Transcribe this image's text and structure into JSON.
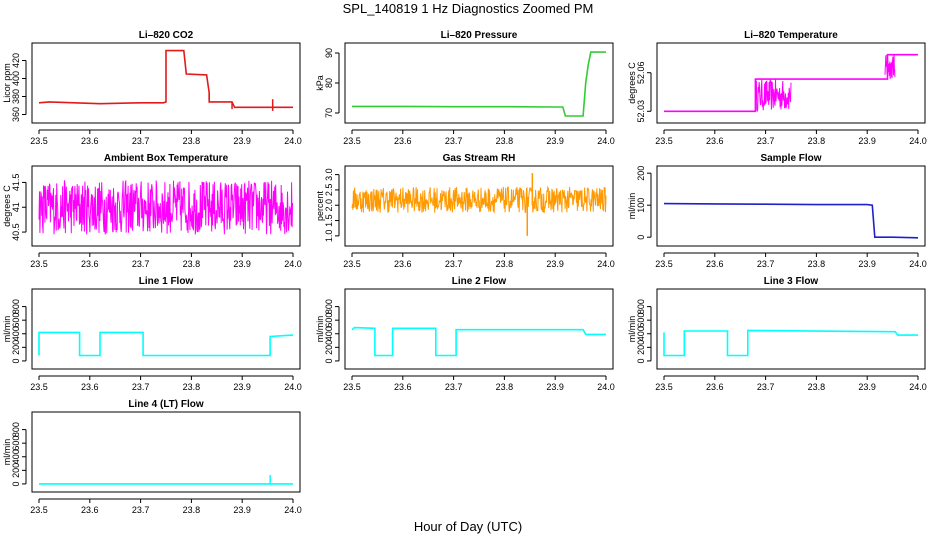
{
  "figure": {
    "title": "SPL_140819  1 Hz Diagnostics Zoomed PM",
    "xlabel": "Hour of Day (UTC)"
  },
  "chart_data": [
    {
      "id": "co2",
      "type": "line",
      "title": "Li–820 CO2",
      "ylabel": "Licor ppm",
      "color": "#e31a1c",
      "xlim": [
        23.5,
        24.0
      ],
      "ylim": [
        355,
        435
      ],
      "xticks": [
        23.5,
        23.6,
        23.7,
        23.8,
        23.9,
        24.0
      ],
      "yticks": [
        360,
        380,
        400,
        420
      ],
      "series": [
        {
          "x": [
            23.5,
            23.52,
            23.62,
            23.7,
            23.745,
            23.75,
            23.75,
            23.785,
            23.79,
            23.79,
            23.83,
            23.835,
            23.835,
            23.88,
            23.885,
            24.0
          ],
          "y": [
            373,
            374,
            372,
            373,
            373,
            374,
            431,
            431,
            405,
            405,
            404,
            384,
            374,
            374,
            368,
            368
          ]
        }
      ],
      "events": [
        {
          "x": 23.96,
          "y0": 364,
          "y1": 377
        },
        {
          "x": 23.835,
          "y0": 376,
          "y1": 384
        },
        {
          "x": 23.88,
          "y0": 366,
          "y1": 374
        }
      ]
    },
    {
      "id": "pres",
      "type": "line",
      "title": "Li–820 Pressure",
      "ylabel": "kPa",
      "color": "#33cc33",
      "xlim": [
        23.5,
        24.0
      ],
      "ylim": [
        68,
        92
      ],
      "xticks": [
        23.5,
        23.6,
        23.7,
        23.8,
        23.9,
        24.0
      ],
      "yticks": [
        70,
        80,
        90
      ],
      "series": [
        {
          "x": [
            23.5,
            23.6,
            23.7,
            23.8,
            23.9,
            23.915,
            23.92,
            23.955,
            23.96,
            23.965,
            23.97,
            24.0
          ],
          "y": [
            72.2,
            72.2,
            72.1,
            72.1,
            72.0,
            72.0,
            69.0,
            69.0,
            80.0,
            86.0,
            90.3,
            90.3
          ]
        }
      ]
    },
    {
      "id": "temp",
      "type": "line",
      "title": "Li–820 Temperature",
      "ylabel": "degrees C",
      "color": "#ff00ff",
      "xlim": [
        23.5,
        24.0
      ],
      "ylim": [
        52.024,
        52.08
      ],
      "xticks": [
        23.5,
        23.6,
        23.7,
        23.8,
        23.9,
        24.0
      ],
      "yticks": [
        52.03,
        52.06
      ],
      "tick_labels": [
        "52.03",
        "52.06"
      ],
      "series": [
        {
          "x": [
            23.5,
            23.68,
            23.68,
            23.75,
            23.75,
            23.94,
            23.94,
            23.95,
            23.95,
            24.0
          ],
          "y": [
            52.03,
            52.03,
            52.055,
            52.055,
            52.055,
            52.055,
            52.074,
            52.074,
            52.074,
            52.074
          ]
        }
      ],
      "noise": [
        {
          "x0": 23.68,
          "x1": 23.75,
          "lo": 52.03,
          "hi": 52.055
        },
        {
          "x0": 23.935,
          "x1": 23.955,
          "lo": 52.055,
          "hi": 52.074
        }
      ]
    },
    {
      "id": "abt",
      "type": "line",
      "title": "Ambient Box Temperature",
      "ylabel": "degrees C",
      "color": "#ff00ff",
      "xlim": [
        23.5,
        24.0
      ],
      "ylim": [
        40.3,
        41.75
      ],
      "xticks": [
        23.5,
        23.6,
        23.7,
        23.8,
        23.9,
        24.0
      ],
      "yticks": [
        40.5,
        41.0,
        41.5
      ],
      "tick_labels": [
        "40.5",
        "41",
        "41.5"
      ],
      "noise": [
        {
          "x0": 23.5,
          "x1": 24.0,
          "lo": 40.45,
          "hi": 41.55,
          "wiggle": 0.18
        }
      ]
    },
    {
      "id": "rh",
      "type": "line",
      "title": "Gas Stream RH",
      "ylabel": "percent",
      "color": "#ff9900",
      "xlim": [
        23.5,
        24.0
      ],
      "ylim": [
        0.8,
        3.15
      ],
      "xticks": [
        23.5,
        23.6,
        23.7,
        23.8,
        23.9,
        24.0
      ],
      "yticks": [
        1.0,
        1.5,
        2.0,
        2.5,
        3.0
      ],
      "tick_labels": [
        "1.0",
        "1.5",
        "2.0",
        "2.5",
        "3.0"
      ],
      "noise": [
        {
          "x0": 23.5,
          "x1": 24.0,
          "lo": 1.75,
          "hi": 2.6,
          "wiggle": 0.3
        }
      ],
      "events": [
        {
          "x": 23.845,
          "y0": 1.0,
          "y1": 2.2
        },
        {
          "x": 23.855,
          "y0": 2.0,
          "y1": 3.05
        }
      ]
    },
    {
      "id": "sflow",
      "type": "line",
      "title": "Sample Flow",
      "ylabel": "ml/min",
      "color": "#1f1fcc",
      "xlim": [
        23.5,
        24.0
      ],
      "ylim": [
        -15,
        210
      ],
      "xticks": [
        23.5,
        23.6,
        23.7,
        23.8,
        23.9,
        24.0
      ],
      "yticks": [
        0,
        100,
        200
      ],
      "series": [
        {
          "x": [
            23.5,
            23.6,
            23.7,
            23.8,
            23.9,
            23.91,
            23.915,
            23.95,
            24.0
          ],
          "y": [
            105,
            104,
            103,
            102,
            102,
            100,
            0,
            0,
            -2
          ]
        }
      ]
    },
    {
      "id": "l1",
      "type": "line",
      "title": "Line 1 Flow",
      "ylabel": "ml/min",
      "color": "#00ffff",
      "xlim": [
        23.5,
        24.0
      ],
      "ylim": [
        -60,
        1000
      ],
      "xticks": [
        23.5,
        23.6,
        23.7,
        23.8,
        23.9,
        24.0
      ],
      "yticks": [
        0,
        200,
        400,
        600,
        800
      ],
      "series": [
        {
          "x": [
            23.5,
            23.5,
            23.58,
            23.58,
            23.62,
            23.62,
            23.705,
            23.705,
            23.955,
            23.955,
            24.0
          ],
          "y": [
            80,
            420,
            420,
            80,
            80,
            420,
            420,
            80,
            80,
            360,
            380
          ]
        }
      ]
    },
    {
      "id": "l2",
      "type": "line",
      "title": "Line 2 Flow",
      "ylabel": "ml/min",
      "color": "#00ffff",
      "xlim": [
        23.5,
        24.0
      ],
      "ylim": [
        -60,
        1000
      ],
      "xticks": [
        23.5,
        23.6,
        23.7,
        23.8,
        23.9,
        24.0
      ],
      "yticks": [
        0,
        200,
        400,
        600,
        800
      ],
      "series": [
        {
          "x": [
            23.5,
            23.505,
            23.545,
            23.545,
            23.58,
            23.58,
            23.665,
            23.665,
            23.705,
            23.705,
            23.955,
            23.96,
            24.0
          ],
          "y": [
            460,
            490,
            480,
            80,
            80,
            480,
            480,
            80,
            80,
            460,
            460,
            390,
            390
          ]
        }
      ]
    },
    {
      "id": "l3",
      "type": "line",
      "title": "Line 3 Flow",
      "ylabel": "ml/min",
      "color": "#00ffff",
      "xlim": [
        23.5,
        24.0
      ],
      "ylim": [
        -60,
        1000
      ],
      "xticks": [
        23.5,
        23.6,
        23.7,
        23.8,
        23.9,
        24.0
      ],
      "yticks": [
        0,
        200,
        400,
        600,
        800
      ],
      "series": [
        {
          "x": [
            23.5,
            23.5,
            23.54,
            23.54,
            23.625,
            23.625,
            23.665,
            23.665,
            23.955,
            23.96,
            24.0
          ],
          "y": [
            420,
            80,
            80,
            440,
            440,
            80,
            80,
            450,
            430,
            380,
            380
          ]
        }
      ]
    },
    {
      "id": "l4",
      "type": "line",
      "title": "Line 4 (LT) Flow",
      "ylabel": "ml/min",
      "color": "#00ffff",
      "xlim": [
        23.5,
        24.0
      ],
      "ylim": [
        -60,
        1000
      ],
      "xticks": [
        23.5,
        23.6,
        23.7,
        23.8,
        23.9,
        24.0
      ],
      "yticks": [
        0,
        200,
        400,
        600,
        800
      ],
      "series": [
        {
          "x": [
            23.5,
            24.0
          ],
          "y": [
            0,
            0
          ]
        }
      ],
      "events": [
        {
          "x": 23.955,
          "y0": 0,
          "y1": 130
        }
      ]
    }
  ]
}
